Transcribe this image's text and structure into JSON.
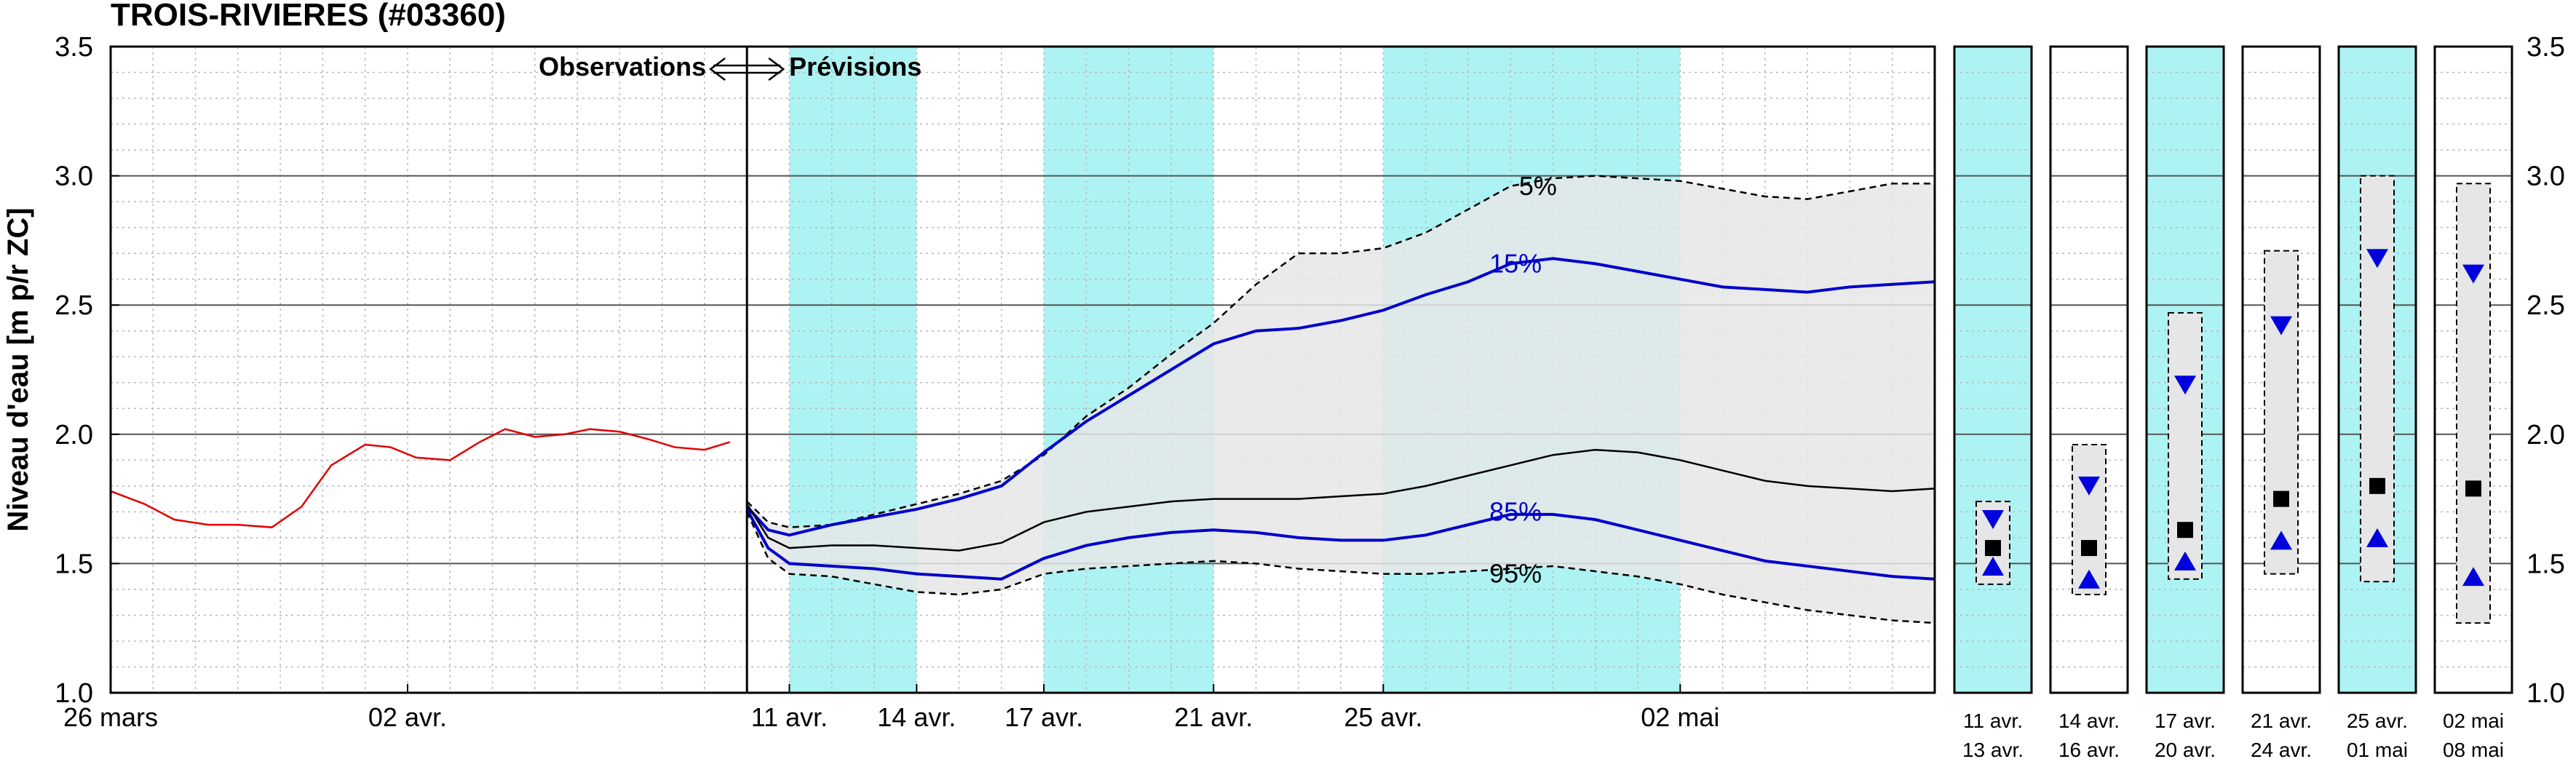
{
  "chart_data": {
    "type": "line",
    "title": "TROIS-RIVIERES (#03360)",
    "ylabel": "Niveau d'eau [m p/r ZC]",
    "ylim": [
      1.0,
      3.5
    ],
    "yticks": [
      "1.0",
      "1.5",
      "2.0",
      "2.5",
      "3.0",
      "3.5"
    ],
    "grid": true,
    "annotation": {
      "left": "Observations",
      "right": "Prévisions"
    },
    "main_xrange": [
      0,
      43
    ],
    "xticks": [
      {
        "x": 0,
        "label": "26 mars"
      },
      {
        "x": 7,
        "label": "02 avr."
      },
      {
        "x": 16,
        "label": "11 avr."
      },
      {
        "x": 19,
        "label": "14 avr."
      },
      {
        "x": 22,
        "label": "17 avr."
      },
      {
        "x": 26,
        "label": "21 avr."
      },
      {
        "x": 30,
        "label": "25 avr."
      },
      {
        "x": 37,
        "label": "02 mai"
      }
    ],
    "forecast_start": 15,
    "shaded_bands": [
      [
        16,
        19
      ],
      [
        22,
        26
      ],
      [
        30,
        37
      ]
    ],
    "band_color": "#aef3f3",
    "observations": {
      "color": "#e00000",
      "x": [
        0,
        0.8,
        1.5,
        2.3,
        3.0,
        3.8,
        4.5,
        5.2,
        6.0,
        6.6,
        7.2,
        8.0,
        8.7,
        9.3,
        10.0,
        10.7,
        11.3,
        12.0,
        12.7,
        13.3,
        14.0,
        14.6
      ],
      "y": [
        1.78,
        1.73,
        1.67,
        1.65,
        1.65,
        1.64,
        1.72,
        1.88,
        1.96,
        1.95,
        1.91,
        1.9,
        1.97,
        2.02,
        1.99,
        2.0,
        2.02,
        2.01,
        1.98,
        1.95,
        1.94,
        1.97
      ]
    },
    "series": [
      {
        "name": "5%",
        "style": "dashed",
        "color": "#000000",
        "x": [
          15,
          15.5,
          16,
          17,
          18,
          19,
          20,
          21,
          22,
          23,
          24,
          25,
          26,
          27,
          28,
          29,
          30,
          31,
          32,
          33,
          34,
          35,
          36,
          37,
          38,
          39,
          40,
          41,
          42,
          43
        ],
        "y": [
          1.74,
          1.66,
          1.64,
          1.65,
          1.69,
          1.73,
          1.77,
          1.82,
          1.92,
          2.07,
          2.18,
          2.31,
          2.43,
          2.58,
          2.7,
          2.7,
          2.72,
          2.78,
          2.87,
          2.96,
          2.99,
          3.0,
          2.99,
          2.98,
          2.95,
          2.92,
          2.91,
          2.94,
          2.97,
          2.97
        ]
      },
      {
        "name": "15%",
        "style": "solid",
        "color": "#0000cc",
        "x": [
          15,
          15.5,
          16,
          17,
          18,
          19,
          20,
          21,
          22,
          23,
          24,
          25,
          26,
          27,
          28,
          29,
          30,
          31,
          32,
          33,
          34,
          35,
          36,
          37,
          38,
          39,
          40,
          41,
          42,
          43
        ],
        "y": [
          1.72,
          1.63,
          1.61,
          1.65,
          1.68,
          1.71,
          1.75,
          1.8,
          1.93,
          2.05,
          2.15,
          2.25,
          2.35,
          2.4,
          2.41,
          2.44,
          2.48,
          2.54,
          2.59,
          2.66,
          2.68,
          2.66,
          2.63,
          2.6,
          2.57,
          2.56,
          2.55,
          2.57,
          2.58,
          2.59
        ]
      },
      {
        "name": "median",
        "style": "solid-thin",
        "color": "#000000",
        "x": [
          15,
          15.5,
          16,
          17,
          18,
          19,
          20,
          21,
          22,
          23,
          24,
          25,
          26,
          27,
          28,
          29,
          30,
          31,
          32,
          33,
          34,
          35,
          36,
          37,
          38,
          39,
          40,
          41,
          42,
          43
        ],
        "y": [
          1.73,
          1.6,
          1.56,
          1.57,
          1.57,
          1.56,
          1.55,
          1.58,
          1.66,
          1.7,
          1.72,
          1.74,
          1.75,
          1.75,
          1.75,
          1.76,
          1.77,
          1.8,
          1.84,
          1.88,
          1.92,
          1.94,
          1.93,
          1.9,
          1.86,
          1.82,
          1.8,
          1.79,
          1.78,
          1.79
        ]
      },
      {
        "name": "85%",
        "style": "solid",
        "color": "#0000cc",
        "x": [
          15,
          15.5,
          16,
          17,
          18,
          19,
          20,
          21,
          22,
          23,
          24,
          25,
          26,
          27,
          28,
          29,
          30,
          31,
          32,
          33,
          34,
          35,
          36,
          37,
          38,
          39,
          40,
          41,
          42,
          43
        ],
        "y": [
          1.71,
          1.56,
          1.5,
          1.49,
          1.48,
          1.46,
          1.45,
          1.44,
          1.52,
          1.57,
          1.6,
          1.62,
          1.63,
          1.62,
          1.6,
          1.59,
          1.59,
          1.61,
          1.65,
          1.69,
          1.69,
          1.67,
          1.63,
          1.59,
          1.55,
          1.51,
          1.49,
          1.47,
          1.45,
          1.44
        ]
      },
      {
        "name": "95%",
        "style": "dashed",
        "color": "#000000",
        "x": [
          15,
          15.5,
          16,
          17,
          18,
          19,
          20,
          21,
          22,
          23,
          24,
          25,
          26,
          27,
          28,
          29,
          30,
          31,
          32,
          33,
          34,
          35,
          36,
          37,
          38,
          39,
          40,
          41,
          42,
          43
        ],
        "y": [
          1.7,
          1.52,
          1.46,
          1.45,
          1.42,
          1.39,
          1.38,
          1.4,
          1.46,
          1.48,
          1.49,
          1.5,
          1.51,
          1.5,
          1.48,
          1.47,
          1.46,
          1.46,
          1.47,
          1.48,
          1.49,
          1.47,
          1.45,
          1.42,
          1.38,
          1.35,
          1.32,
          1.3,
          1.28,
          1.27
        ]
      }
    ],
    "percentile_labels": [
      {
        "text": "5%",
        "x": 33.2,
        "y": 2.96,
        "color": "#000000"
      },
      {
        "text": "15%",
        "x": 32.5,
        "y": 2.66,
        "color": "#0000cc"
      },
      {
        "text": "85%",
        "x": 32.5,
        "y": 1.7,
        "color": "#0000cc"
      },
      {
        "text": "95%",
        "x": 32.5,
        "y": 1.46,
        "color": "#000000"
      }
    ],
    "panels": [
      {
        "label1": "11 avr.",
        "label2": "13 avr.",
        "shaded": true,
        "box": [
          1.42,
          1.74
        ],
        "tri_down": 1.67,
        "square": 1.56,
        "tri_up": 1.49
      },
      {
        "label1": "14 avr.",
        "label2": "16 avr.",
        "shaded": false,
        "box": [
          1.38,
          1.96
        ],
        "tri_down": 1.8,
        "square": 1.56,
        "tri_up": 1.44
      },
      {
        "label1": "17 avr.",
        "label2": "20 avr.",
        "shaded": true,
        "box": [
          1.44,
          2.47
        ],
        "tri_down": 2.19,
        "square": 1.63,
        "tri_up": 1.51
      },
      {
        "label1": "21 avr.",
        "label2": "24 avr.",
        "shaded": false,
        "box": [
          1.46,
          2.71
        ],
        "tri_down": 2.42,
        "square": 1.75,
        "tri_up": 1.59
      },
      {
        "label1": "25 avr.",
        "label2": "01 mai",
        "shaded": true,
        "box": [
          1.43,
          3.0
        ],
        "tri_down": 2.68,
        "square": 1.8,
        "tri_up": 1.6
      },
      {
        "label1": "02 mai",
        "label2": "08 mai",
        "shaded": false,
        "box": [
          1.27,
          2.97
        ],
        "tri_down": 2.62,
        "square": 1.79,
        "tri_up": 1.45
      }
    ],
    "marker_color": "#0000dd"
  }
}
